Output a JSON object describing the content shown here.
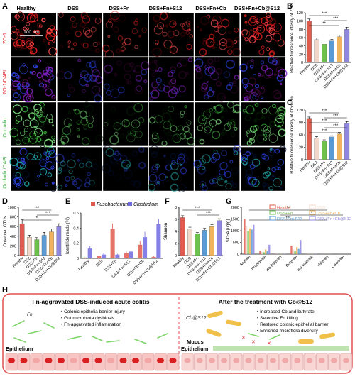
{
  "panel_letters": {
    "A": "A",
    "B": "B",
    "C": "C",
    "D": "D",
    "E": "E",
    "F": "F",
    "G": "G",
    "H": "H"
  },
  "micrograph": {
    "groups": [
      "Healthy",
      "DSS",
      "DSS+Fn",
      "DSS+Fn+S12",
      "DSS+Fn+Cb",
      "DSS+Fn+Cb@S12"
    ],
    "rows": [
      "ZO-1",
      "ZO-1/DAPI",
      "Occludin",
      "Occludin/DAPI"
    ],
    "scale_bar": "100 μm"
  },
  "chart_data": [
    {
      "panel": "B",
      "type": "bar",
      "ylabel": "Relative fluorescence intesity of ZO-1",
      "ylim": [
        0,
        120
      ],
      "yticks": [
        0,
        20,
        40,
        60,
        80,
        100,
        120
      ],
      "categories": [
        "Healthy",
        "DSS",
        "DSS+Fn",
        "DSS+Fn+S12",
        "DSS+Fn+Cb",
        "DSS+Fn+Cb@S12"
      ],
      "values": [
        100,
        55,
        44,
        52,
        62,
        80
      ],
      "errors": [
        5,
        4,
        3,
        4,
        4,
        5
      ],
      "colors": [
        "#e05a4f",
        "#f0d7c9",
        "#6cc24a",
        "#5a9bd5",
        "#f2b35e",
        "#8f86e0"
      ],
      "significance": [
        "***",
        "***",
        "**"
      ]
    },
    {
      "panel": "C",
      "type": "bar",
      "ylabel": "Relative fluorescence intesity of Occludin",
      "ylim": [
        0,
        120
      ],
      "yticks": [
        0,
        30,
        60,
        90,
        120
      ],
      "categories": [
        "Healthy",
        "DSS",
        "DSS+Fn",
        "DSS+Fn+S12",
        "DSS+Fn+Cb",
        "DSS+Fn+Cb@S12"
      ],
      "values": [
        100,
        52,
        45,
        55,
        62,
        88
      ],
      "errors": [
        3,
        4,
        3,
        3,
        4,
        4
      ],
      "colors": [
        "#e05a4f",
        "#f0d7c9",
        "#6cc24a",
        "#5a9bd5",
        "#f2b35e",
        "#8f86e0"
      ],
      "significance": [
        "***",
        "***",
        "***",
        "***",
        "***"
      ]
    },
    {
      "panel": "D",
      "type": "bar",
      "ylabel": "Observed OTUs",
      "ylim": [
        0,
        1000
      ],
      "yticks": [
        0,
        200,
        400,
        600,
        800,
        1000
      ],
      "categories": [
        "Healthy",
        "DSS",
        "DSS+Fn",
        "DSS+Fn+S12",
        "DSS+Fn+Cb",
        "DSS+Fn+Cb@S12"
      ],
      "values": [
        660,
        380,
        330,
        420,
        490,
        600
      ],
      "errors": [
        80,
        40,
        40,
        60,
        60,
        60
      ],
      "colors": [
        "#e05a4f",
        "#f0d7c9",
        "#6cc24a",
        "#5a9bd5",
        "#f2b35e",
        "#8f86e0"
      ],
      "significance": [
        "***",
        "***",
        "*"
      ]
    },
    {
      "panel": "E",
      "type": "bar",
      "ylabel": "Identifide reads (%)",
      "ylim": [
        0,
        0.6
      ],
      "yticks": [
        0.0,
        0.2,
        0.4,
        0.6
      ],
      "categories": [
        "Healthy",
        "DSS",
        "DSS+Fn",
        "DSS+Fn+S12",
        "DSS+Fn+Cb",
        "DSS+Fn+Cb@S12"
      ],
      "series": [
        {
          "name": "Fusobacterium",
          "color": "#e05a4f",
          "values": [
            0.01,
            0.03,
            0.39,
            0.07,
            0.18,
            0.02
          ],
          "errors": [
            0.005,
            0.01,
            0.07,
            0.02,
            0.05,
            0.01
          ]
        },
        {
          "name": "Clostridium",
          "color": "#6f6ae0",
          "values": [
            0.13,
            0.05,
            0.05,
            0.09,
            0.28,
            0.45
          ],
          "errors": [
            0.03,
            0.02,
            0.01,
            0.02,
            0.07,
            0.07
          ]
        }
      ]
    },
    {
      "panel": "F",
      "type": "bar",
      "ylabel": "Shannon",
      "ylim": [
        0,
        8
      ],
      "yticks": [
        0,
        2,
        4,
        6,
        8
      ],
      "categories": [
        "Healthy",
        "DSS",
        "DSS+Fn",
        "DSS+Fn+S12",
        "DSS+Fn+Cb",
        "DSS+Fn+Cb@S12"
      ],
      "values": [
        6.3,
        4.4,
        3.6,
        4.2,
        4.8,
        5.8
      ],
      "errors": [
        0.3,
        0.3,
        0.2,
        0.3,
        0.3,
        0.3
      ],
      "colors": [
        "#e05a4f",
        "#f0d7c9",
        "#6cc24a",
        "#5a9bd5",
        "#f2b35e",
        "#8f86e0"
      ],
      "significance": [
        "***",
        "***"
      ]
    },
    {
      "panel": "G",
      "type": "bar",
      "ylabel": "SCFA (ug/g)",
      "ylim": [
        0,
        2000
      ],
      "yticks": [
        0,
        500,
        1000,
        1500,
        2000
      ],
      "categories": [
        "Acetate",
        "Propionate",
        "Iso-butyrate",
        "Butyrate",
        "Iso-valerate",
        "Valerate",
        "Caproate"
      ],
      "series": [
        {
          "name": "Healthy",
          "color": "#e05a4f",
          "values": [
            1500,
            150,
            10,
            360,
            10,
            5,
            3
          ]
        },
        {
          "name": "DSS",
          "color": "#f0d7c9",
          "values": [
            1200,
            100,
            8,
            200,
            8,
            4,
            2
          ]
        },
        {
          "name": "DSS+Fn",
          "color": "#6cc24a",
          "values": [
            1000,
            80,
            6,
            150,
            6,
            3,
            2
          ]
        },
        {
          "name": "DSS+Fn+Cb",
          "color": "#f2b35e",
          "values": [
            1100,
            200,
            10,
            300,
            8,
            4,
            2
          ]
        },
        {
          "name": "DSS+Fn+S12",
          "color": "#5a9bd5",
          "values": [
            1050,
            120,
            8,
            220,
            8,
            4,
            2
          ]
        },
        {
          "name": "DSS+Fn+Cb@S12",
          "color": "#8f86e0",
          "values": [
            1250,
            400,
            12,
            600,
            10,
            5,
            3
          ]
        }
      ],
      "significance": [
        "**",
        "*",
        "***"
      ]
    }
  ],
  "schematic": {
    "left_title": "Fn-aggravated DSS-induced acute colitis",
    "right_title": "After the treatment with Cb@S12",
    "left_bullets": [
      "Colonic epithelia barrier injury",
      "Gut microbiota dysbiosis",
      "Fn-aggravated inflammation"
    ],
    "right_bullets": [
      "Increased Cb and butyrate",
      "Selective Fn killing",
      "Restored colonic epithelial barrier",
      "Enriched microflora diversity"
    ],
    "labels": {
      "fn": "Fn",
      "cb_s12": "Cb@S12",
      "mucus": "Mucus",
      "epithelium_left": "Epithelium",
      "epithelium_right": "Epithelium"
    }
  },
  "colors": {
    "zo1": "#e02020",
    "occludin": "#3aa83a",
    "dapi": "#2a3fd8",
    "frame": "#e05050"
  }
}
